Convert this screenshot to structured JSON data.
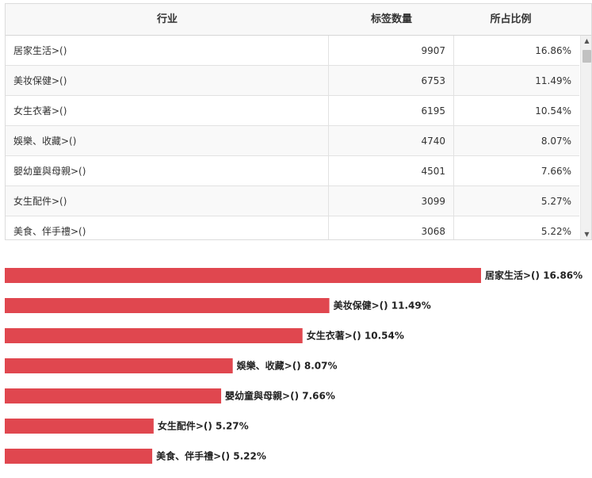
{
  "table": {
    "headers": {
      "industry": "行业",
      "count": "标签数量",
      "ratio": "所占比例"
    },
    "rows": [
      {
        "industry": "居家生活>()",
        "count": "9907",
        "ratio": "16.86%"
      },
      {
        "industry": "美妆保健>()",
        "count": "6753",
        "ratio": "11.49%"
      },
      {
        "industry": "女生衣著>()",
        "count": "6195",
        "ratio": "10.54%"
      },
      {
        "industry": "娛樂、收藏>()",
        "count": "4740",
        "ratio": "8.07%"
      },
      {
        "industry": "嬰幼童與母親>()",
        "count": "4501",
        "ratio": "7.66%"
      },
      {
        "industry": "女生配件>()",
        "count": "3099",
        "ratio": "5.27%"
      },
      {
        "industry": "美食、伴手禮>()",
        "count": "3068",
        "ratio": "5.22%"
      }
    ]
  },
  "scrollbar": {
    "up_icon": "triangle-up",
    "down_icon": "triangle-down"
  },
  "chart_data": {
    "type": "bar",
    "orientation": "horizontal",
    "color": "#e0474f",
    "categories": [
      "居家生活>()",
      "美妆保健>()",
      "女生衣著>()",
      "娛樂、收藏>()",
      "嬰幼童與母親>()",
      "女生配件>()",
      "美食、伴手禮>()"
    ],
    "values": [
      16.86,
      11.49,
      10.54,
      8.07,
      7.66,
      5.27,
      5.22
    ],
    "labels": [
      "居家生活>() 16.86%",
      "美妆保健>() 11.49%",
      "女生衣著>() 10.54%",
      "娛樂、收藏>() 8.07%",
      "嬰幼童與母親>() 7.66%",
      "女生配件>() 5.27%",
      "美食、伴手禮>() 5.22%"
    ],
    "xlim": [
      0,
      16.86
    ],
    "grid": false,
    "legend": "none"
  }
}
